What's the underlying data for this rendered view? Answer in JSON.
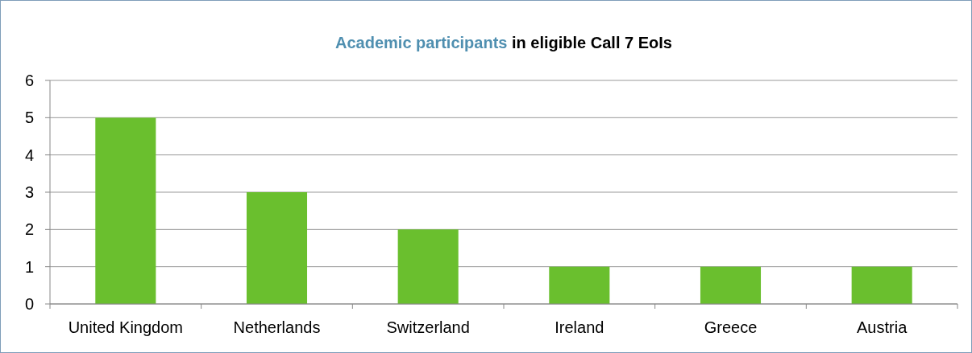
{
  "chart_data": {
    "type": "bar",
    "title": "Academic participants in eligible Call 7 EoIs",
    "categories": [
      "United Kingdom",
      "Netherlands",
      "Switzerland",
      "Ireland",
      "Greece",
      "Austria"
    ],
    "values": [
      5,
      3,
      2,
      1,
      1,
      1
    ],
    "color": "#6abf2e",
    "ylim": [
      0,
      6
    ],
    "yticks": [
      0,
      1,
      2,
      3,
      4,
      5,
      6
    ],
    "grid": "y"
  }
}
